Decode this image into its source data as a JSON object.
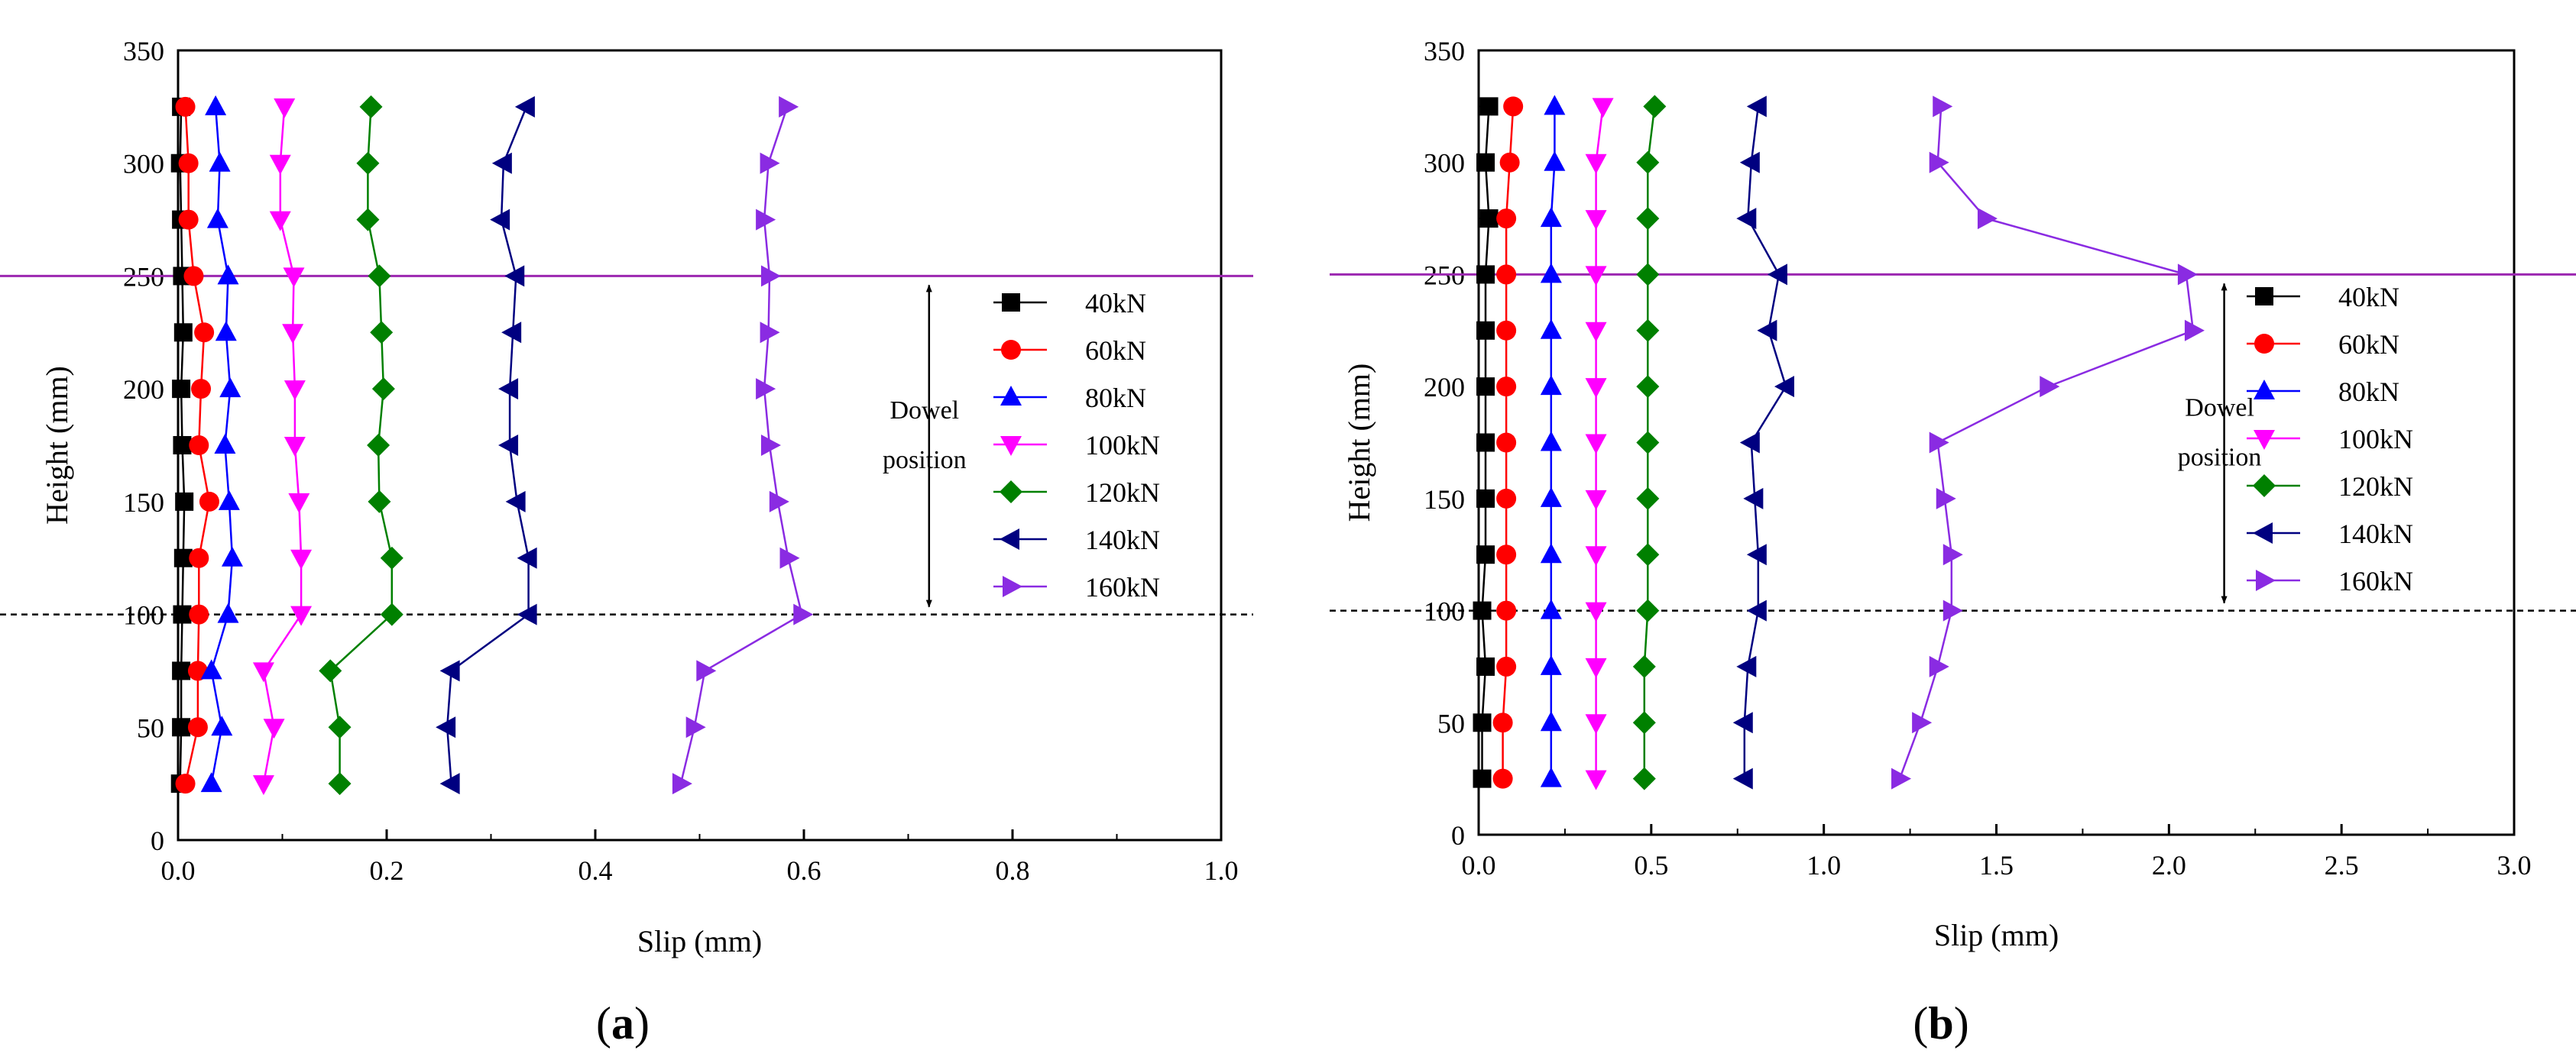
{
  "chart_data": [
    {
      "panel": "(a)",
      "panel_paren_open": "(",
      "panel_letter": "a",
      "panel_paren_close": ")",
      "type": "line",
      "xlabel": "Slip (mm)",
      "ylabel": "Height (mm)",
      "xlim": [
        0,
        1.0
      ],
      "ylim": [
        0,
        350
      ],
      "xticks": [
        0.0,
        0.2,
        0.4,
        0.6,
        0.8,
        1.0
      ],
      "xtick_labels": [
        "0.0",
        "0.2",
        "0.4",
        "0.6",
        "0.8",
        "1.0"
      ],
      "yticks": [
        0,
        50,
        100,
        150,
        200,
        250,
        300,
        350
      ],
      "ytick_labels": [
        "0",
        "50",
        "100",
        "150",
        "200",
        "250",
        "300",
        "350"
      ],
      "y": [
        25,
        50,
        75,
        100,
        125,
        150,
        175,
        200,
        225,
        250,
        275,
        300,
        325
      ],
      "series": [
        {
          "name": "40kN",
          "color": "#000000",
          "marker": "square",
          "values": [
            0.002,
            0.003,
            0.003,
            0.004,
            0.005,
            0.006,
            0.004,
            0.003,
            0.005,
            0.004,
            0.003,
            0.002,
            0.003
          ]
        },
        {
          "name": "60kN",
          "color": "#ff0000",
          "marker": "circle",
          "values": [
            0.007,
            0.019,
            0.019,
            0.02,
            0.02,
            0.03,
            0.02,
            0.022,
            0.025,
            0.015,
            0.01,
            0.01,
            0.007
          ]
        },
        {
          "name": "80kN",
          "color": "#0000ff",
          "marker": "triangle-up",
          "values": [
            0.032,
            0.042,
            0.032,
            0.048,
            0.052,
            0.049,
            0.045,
            0.05,
            0.046,
            0.048,
            0.038,
            0.04,
            0.036
          ]
        },
        {
          "name": "100kN",
          "color": "#ff00ff",
          "marker": "triangle-down",
          "values": [
            0.082,
            0.092,
            0.082,
            0.118,
            0.118,
            0.116,
            0.112,
            0.112,
            0.11,
            0.111,
            0.098,
            0.098,
            0.102
          ]
        },
        {
          "name": "120kN",
          "color": "#008000",
          "marker": "diamond",
          "values": [
            0.155,
            0.155,
            0.146,
            0.205,
            0.205,
            0.193,
            0.192,
            0.197,
            0.195,
            0.193,
            0.182,
            0.182,
            0.185
          ]
        },
        {
          "name": "140kN",
          "color": "#000080",
          "marker": "triangle-left",
          "values": [
            0.262,
            0.258,
            0.262,
            0.336,
            0.336,
            0.325,
            0.318,
            0.318,
            0.321,
            0.324,
            0.31,
            0.312,
            0.334
          ]
        },
        {
          "name": "160kN",
          "color": "#8a2be2",
          "marker": "triangle-right",
          "values": [
            0.482,
            0.495,
            0.505,
            0.598,
            0.585,
            0.575,
            0.567,
            0.562,
            0.566,
            0.567,
            0.562,
            0.566,
            0.584
          ]
        }
      ],
      "hlines": [
        {
          "y": 250,
          "color": "#9c27b0",
          "style": "solid"
        },
        {
          "y": 100,
          "color": "#000000",
          "style": "dashed"
        }
      ],
      "annotation": {
        "line1": "Dowel",
        "line2": "position",
        "x": 0.72,
        "y_from": 100,
        "y_to": 250
      },
      "legend_position": "right"
    },
    {
      "panel": "(b)",
      "panel_paren_open": "(",
      "panel_letter": "b",
      "panel_paren_close": ")",
      "type": "line",
      "xlabel": "Slip (mm)",
      "ylabel": "Height (mm)",
      "xlim": [
        0,
        3.0
      ],
      "ylim": [
        0,
        350
      ],
      "xticks": [
        0.0,
        0.5,
        1.0,
        1.5,
        2.0,
        2.5,
        3.0
      ],
      "xtick_labels": [
        "0.0",
        "0.5",
        "1.0",
        "1.5",
        "2.0",
        "2.5",
        "3.0"
      ],
      "yticks": [
        0,
        50,
        100,
        150,
        200,
        250,
        300,
        350
      ],
      "ytick_labels": [
        "0",
        "50",
        "100",
        "150",
        "200",
        "250",
        "300",
        "350"
      ],
      "y": [
        25,
        50,
        75,
        100,
        125,
        150,
        175,
        200,
        225,
        250,
        275,
        300,
        325
      ],
      "series": [
        {
          "name": "40kN",
          "color": "#000000",
          "marker": "square",
          "values": [
            0.01,
            0.01,
            0.02,
            0.01,
            0.02,
            0.02,
            0.02,
            0.02,
            0.02,
            0.02,
            0.03,
            0.02,
            0.03
          ]
        },
        {
          "name": "60kN",
          "color": "#ff0000",
          "marker": "circle",
          "values": [
            0.07,
            0.07,
            0.08,
            0.08,
            0.08,
            0.08,
            0.08,
            0.08,
            0.08,
            0.08,
            0.08,
            0.09,
            0.1
          ]
        },
        {
          "name": "80kN",
          "color": "#0000ff",
          "marker": "triangle-up",
          "values": [
            0.21,
            0.21,
            0.21,
            0.21,
            0.21,
            0.21,
            0.21,
            0.21,
            0.21,
            0.21,
            0.21,
            0.22,
            0.22
          ]
        },
        {
          "name": "100kN",
          "color": "#ff00ff",
          "marker": "triangle-down",
          "values": [
            0.34,
            0.34,
            0.34,
            0.34,
            0.34,
            0.34,
            0.34,
            0.34,
            0.34,
            0.34,
            0.34,
            0.34,
            0.36
          ]
        },
        {
          "name": "120kN",
          "color": "#008000",
          "marker": "diamond",
          "values": [
            0.48,
            0.48,
            0.48,
            0.49,
            0.49,
            0.49,
            0.49,
            0.49,
            0.49,
            0.49,
            0.49,
            0.49,
            0.51
          ]
        },
        {
          "name": "140kN",
          "color": "#000080",
          "marker": "triangle-left",
          "values": [
            0.77,
            0.77,
            0.78,
            0.81,
            0.81,
            0.8,
            0.79,
            0.89,
            0.84,
            0.87,
            0.78,
            0.79,
            0.81
          ]
        },
        {
          "name": "160kN",
          "color": "#8a2be2",
          "marker": "triangle-right",
          "values": [
            1.22,
            1.28,
            1.33,
            1.37,
            1.37,
            1.35,
            1.33,
            1.65,
            2.07,
            2.05,
            1.47,
            1.33,
            1.34
          ]
        }
      ],
      "hlines": [
        {
          "y": 250,
          "color": "#9c27b0",
          "style": "solid"
        },
        {
          "y": 100,
          "color": "#000000",
          "style": "dashed"
        }
      ],
      "annotation": {
        "line1": "Dowel",
        "line2": "position",
        "x": 2.16,
        "y_from": 100,
        "y_to": 250
      },
      "legend_position": "right"
    }
  ]
}
